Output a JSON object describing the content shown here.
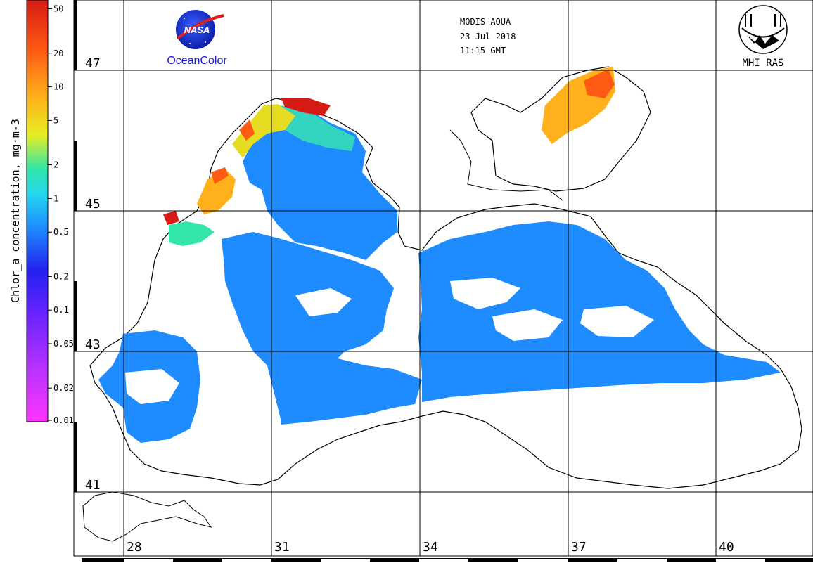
{
  "header": {
    "sensor": "MODIS-AQUA",
    "date": "23 Jul 2018",
    "time": "11:15 GMT"
  },
  "logos": {
    "nasa": "NASA",
    "oceancolor": "OceanColor",
    "mhi": "MHI RAS"
  },
  "colorbar": {
    "title": "Chlor_a concentration, mg·m-3",
    "ticks": [
      "50",
      "20",
      "10",
      "5",
      "2",
      "1",
      "0.5",
      "0.2",
      "0.1",
      "0.05",
      "0.02",
      "0.01"
    ],
    "tick_values": [
      50,
      20,
      10,
      5,
      2,
      1,
      0.5,
      0.2,
      0.1,
      0.05,
      0.02,
      0.01
    ],
    "range": [
      0.01,
      60
    ],
    "scale": "log",
    "colors": [
      "#ff33ff",
      "#9933ff",
      "#2222ee",
      "#1e8cff",
      "#22d8ee",
      "#33e6a8",
      "#e6ee22",
      "#ffb01a",
      "#ff5a14",
      "#d61a14"
    ]
  },
  "grid": {
    "latitudes": [
      "47",
      "45",
      "43",
      "41"
    ],
    "longitudes": [
      "28",
      "31",
      "34",
      "37",
      "40"
    ]
  },
  "map_colors": {
    "low": "#1e8cff",
    "mid": "#22c8ee",
    "high": "#ffb01a",
    "very_high": "#d61a14",
    "land": "#ffffff",
    "coast": "#000000"
  }
}
